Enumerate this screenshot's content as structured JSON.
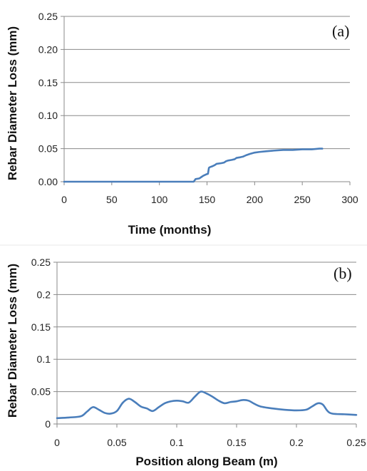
{
  "chart_data": [
    {
      "type": "line",
      "panel_label": "(a)",
      "xlabel": "Time (months)",
      "ylabel": "Rebar Diameter Loss (mm)",
      "xlim": [
        0,
        300
      ],
      "ylim": [
        0,
        0.25
      ],
      "x_ticks": [
        "0",
        "50",
        "100",
        "150",
        "200",
        "250",
        "300"
      ],
      "y_ticks": [
        "0.00",
        "0.05",
        "0.10",
        "0.15",
        "0.20",
        "0.25"
      ],
      "x_tick_values": [
        0,
        50,
        100,
        150,
        200,
        250,
        300
      ],
      "y_tick_values": [
        0,
        0.05,
        0.1,
        0.15,
        0.2,
        0.25
      ],
      "grid": "horizontal",
      "series": [
        {
          "color": "#4a7ebb",
          "points": [
            [
              0,
              0
            ],
            [
              136,
              0
            ],
            [
              137,
              0.002
            ],
            [
              138,
              0.004
            ],
            [
              142,
              0.005
            ],
            [
              144,
              0.007
            ],
            [
              146,
              0.009
            ],
            [
              149,
              0.011
            ],
            [
              151,
              0.012
            ],
            [
              152,
              0.021
            ],
            [
              153,
              0.022
            ],
            [
              155,
              0.023
            ],
            [
              158,
              0.025
            ],
            [
              160,
              0.027
            ],
            [
              165,
              0.028
            ],
            [
              168,
              0.029
            ],
            [
              170,
              0.031
            ],
            [
              172,
              0.032
            ],
            [
              176,
              0.033
            ],
            [
              179,
              0.034
            ],
            [
              181,
              0.036
            ],
            [
              185,
              0.037
            ],
            [
              188,
              0.038
            ],
            [
              191,
              0.04
            ],
            [
              195,
              0.042
            ],
            [
              200,
              0.044
            ],
            [
              205,
              0.045
            ],
            [
              212,
              0.046
            ],
            [
              220,
              0.047
            ],
            [
              230,
              0.048
            ],
            [
              240,
              0.048
            ],
            [
              250,
              0.049
            ],
            [
              260,
              0.049
            ],
            [
              268,
              0.05
            ],
            [
              271,
              0.05
            ]
          ]
        }
      ]
    },
    {
      "type": "line",
      "panel_label": "(b)",
      "xlabel": "Position along Beam (m)",
      "ylabel": "Rebar Diameter Loss (mm)",
      "xlim": [
        0,
        0.25
      ],
      "ylim": [
        0,
        0.25
      ],
      "x_ticks": [
        "0",
        "0.05",
        "0.1",
        "0.15",
        "0.2",
        "0.25"
      ],
      "y_ticks": [
        "0",
        "0.05",
        "0.1",
        "0.15",
        "0.2",
        "0.25"
      ],
      "x_tick_values": [
        0,
        0.05,
        0.1,
        0.15,
        0.2,
        0.25
      ],
      "y_tick_values": [
        0,
        0.05,
        0.1,
        0.15,
        0.2,
        0.25
      ],
      "grid": "horizontal",
      "series": [
        {
          "color": "#4a7ebb",
          "points": [
            [
              0,
              0.009
            ],
            [
              0.01,
              0.01
            ],
            [
              0.02,
              0.012
            ],
            [
              0.025,
              0.019
            ],
            [
              0.03,
              0.026
            ],
            [
              0.035,
              0.022
            ],
            [
              0.04,
              0.017
            ],
            [
              0.045,
              0.016
            ],
            [
              0.05,
              0.02
            ],
            [
              0.055,
              0.033
            ],
            [
              0.06,
              0.039
            ],
            [
              0.065,
              0.034
            ],
            [
              0.07,
              0.027
            ],
            [
              0.075,
              0.024
            ],
            [
              0.08,
              0.02
            ],
            [
              0.085,
              0.026
            ],
            [
              0.09,
              0.032
            ],
            [
              0.095,
              0.035
            ],
            [
              0.1,
              0.036
            ],
            [
              0.105,
              0.035
            ],
            [
              0.11,
              0.033
            ],
            [
              0.115,
              0.042
            ],
            [
              0.12,
              0.05
            ],
            [
              0.125,
              0.047
            ],
            [
              0.13,
              0.042
            ],
            [
              0.135,
              0.036
            ],
            [
              0.14,
              0.032
            ],
            [
              0.145,
              0.034
            ],
            [
              0.15,
              0.035
            ],
            [
              0.155,
              0.037
            ],
            [
              0.16,
              0.036
            ],
            [
              0.165,
              0.031
            ],
            [
              0.17,
              0.027
            ],
            [
              0.18,
              0.024
            ],
            [
              0.19,
              0.022
            ],
            [
              0.2,
              0.021
            ],
            [
              0.208,
              0.022
            ],
            [
              0.213,
              0.027
            ],
            [
              0.218,
              0.032
            ],
            [
              0.222,
              0.03
            ],
            [
              0.226,
              0.02
            ],
            [
              0.23,
              0.016
            ],
            [
              0.24,
              0.015
            ],
            [
              0.25,
              0.014
            ]
          ]
        }
      ]
    }
  ]
}
